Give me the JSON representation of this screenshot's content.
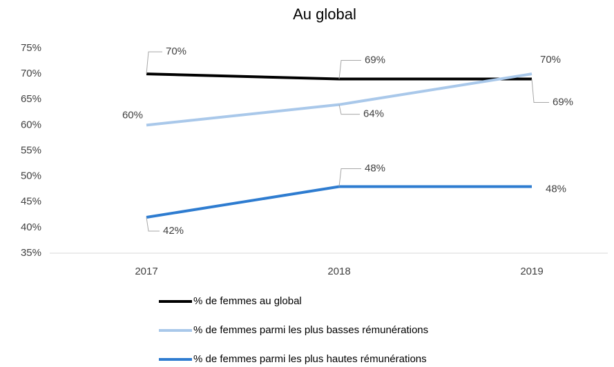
{
  "chart_data": {
    "type": "line",
    "title": "Au global",
    "categories": [
      "2017",
      "2018",
      "2019"
    ],
    "series": [
      {
        "name": "% de femmes au global",
        "color": "#000000",
        "values": [
          70,
          69,
          69
        ],
        "value_labels": [
          "70%",
          "69%",
          "69%"
        ]
      },
      {
        "name": "% de femmes parmi les plus basses rémunérations",
        "color": "#a9c8ea",
        "values": [
          60,
          64,
          70
        ],
        "value_labels": [
          "60%",
          "64%",
          "70%"
        ]
      },
      {
        "name": "% de femmes parmi les plus hautes rémunérations",
        "color": "#2e7cd0",
        "values": [
          42,
          48,
          48
        ],
        "value_labels": [
          "42%",
          "48%",
          "48%"
        ]
      }
    ],
    "ylim": [
      35,
      75
    ],
    "yticks": [
      {
        "value": 35,
        "label": "35%"
      },
      {
        "value": 40,
        "label": "40%"
      },
      {
        "value": 45,
        "label": "45%"
      },
      {
        "value": 50,
        "label": "50%"
      },
      {
        "value": 55,
        "label": "55%"
      },
      {
        "value": 60,
        "label": "60%"
      },
      {
        "value": 65,
        "label": "65%"
      },
      {
        "value": 70,
        "label": "70%"
      },
      {
        "value": 75,
        "label": "75%"
      }
    ],
    "grid": false,
    "legend": "bottom"
  }
}
